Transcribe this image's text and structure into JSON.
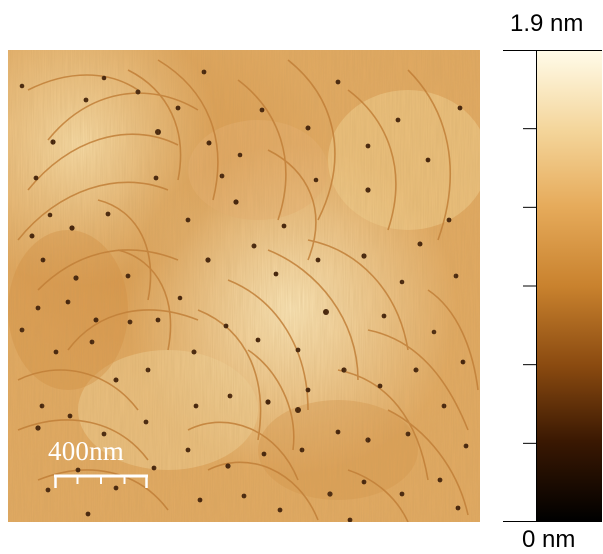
{
  "image": {
    "kind": "afm-height-map",
    "scale_bar_label": "400nm"
  },
  "colorbar": {
    "max_label": "1.9 nm",
    "min_label": "0 nm",
    "colors": [
      "#fffbe8",
      "#f4d59a",
      "#e6ab5b",
      "#c9822e",
      "#8a4a10",
      "#3a1802",
      "#000000"
    ]
  },
  "icons": {
    "scale_bar": "scale-bar-icon"
  }
}
